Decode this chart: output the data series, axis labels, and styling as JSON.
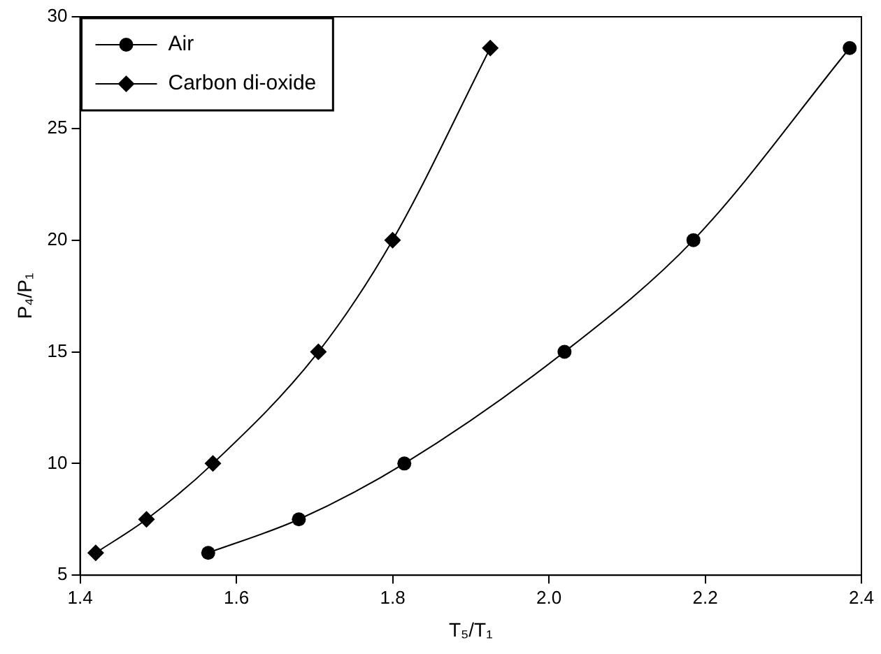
{
  "chart_data": {
    "type": "line",
    "xlabel": "T₅/T₁",
    "ylabel": "P₄/P₁",
    "xlim": [
      1.4,
      2.4
    ],
    "xticks": [
      {
        "value": 1.4,
        "label": "1.4"
      },
      {
        "value": 1.6,
        "label": "1.6"
      },
      {
        "value": 1.8,
        "label": "1.8"
      },
      {
        "value": 2.0,
        "label": "2.0"
      },
      {
        "value": 2.2,
        "label": "2.2"
      },
      {
        "value": 2.4,
        "label": "2.4"
      }
    ],
    "ylim": [
      5,
      30
    ],
    "yticks": [
      5,
      10,
      15,
      20,
      25,
      30
    ],
    "grid": false,
    "legend": "top left",
    "line_style": "solid",
    "series": [
      {
        "name": "Air",
        "color": "#000000",
        "marker": "circle",
        "x": [
          1.564,
          1.68,
          1.815,
          2.02,
          2.185,
          2.385
        ],
        "values": [
          6,
          7.5,
          10,
          15,
          20,
          28.6
        ]
      },
      {
        "name": "Carbon di-oxide",
        "color": "#000000",
        "marker": "diamond",
        "x": [
          1.42,
          1.485,
          1.57,
          1.705,
          1.8,
          1.925
        ],
        "values": [
          6,
          7.5,
          10,
          15,
          20,
          28.6
        ]
      }
    ]
  }
}
